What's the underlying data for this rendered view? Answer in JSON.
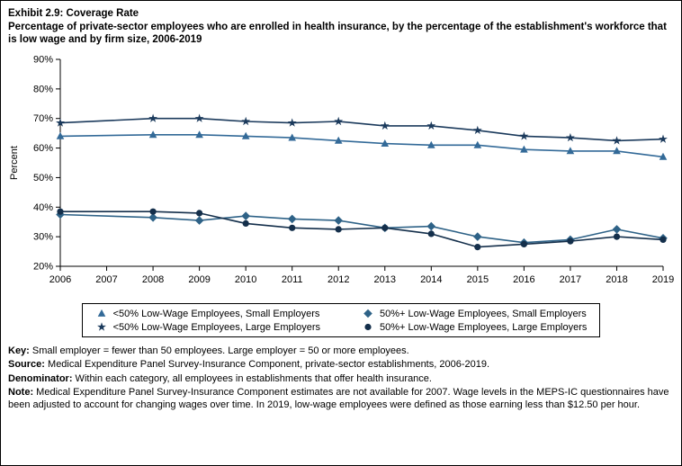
{
  "title": {
    "line1": "Exhibit 2.9: Coverage Rate",
    "line2": "Percentage of private-sector employees who are enrolled in health insurance, by the percentage of the establishment's workforce that is low wage and by firm size, 2006-2019"
  },
  "chart_data": {
    "type": "line",
    "title": "Coverage Rate",
    "xlabel": "",
    "ylabel": "Percent",
    "ylim": [
      20,
      90
    ],
    "ytick_step": 10,
    "ytick_suffix": "%",
    "grid": false,
    "legend_position": "bottom",
    "missing_note": "Estimates not available for 2007",
    "x": [
      2006,
      2007,
      2008,
      2009,
      2010,
      2011,
      2012,
      2013,
      2014,
      2015,
      2016,
      2017,
      2018,
      2019
    ],
    "series": [
      {
        "name": "<50% Low-Wage Employees, Small Employers",
        "marker": "triangle",
        "color": "#336a98",
        "values": [
          64,
          null,
          64.5,
          64.5,
          64,
          63.5,
          62.5,
          61.5,
          61,
          61,
          59.5,
          59,
          59,
          57
        ]
      },
      {
        "name": "<50% Low-Wage Employees, Large Employers",
        "marker": "star",
        "color": "#1b3a5c",
        "values": [
          68.5,
          null,
          70,
          70,
          69,
          68.5,
          69,
          67.5,
          67.5,
          66,
          64,
          63.5,
          62.5,
          63
        ]
      },
      {
        "name": "50%+ Low-Wage Employees, Small Employers",
        "marker": "diamond",
        "color": "#2e6287",
        "values": [
          37.5,
          null,
          36.5,
          35.5,
          37,
          36,
          35.5,
          33,
          33.5,
          30,
          28,
          29,
          32.5,
          29.5
        ]
      },
      {
        "name": "50%+ Low-Wage Employees, Large Employers",
        "marker": "circle",
        "color": "#142f4b",
        "values": [
          38.5,
          null,
          38.5,
          38,
          34.5,
          33,
          32.5,
          33,
          31,
          26.5,
          27.5,
          28.5,
          30,
          29
        ]
      }
    ]
  },
  "footer": [
    {
      "label": "Key:",
      "text": " Small employer = fewer than 50 employees. Large employer = 50 or more employees."
    },
    {
      "label": "Source:",
      "text": " Medical Expenditure Panel Survey-Insurance Component, private-sector establishments, 2006-2019."
    },
    {
      "label": "Denominator:",
      "text": " Within each category, all employees in establishments that offer health insurance."
    },
    {
      "label": "Note:",
      "text": " Medical Expenditure Panel Survey-Insurance Component estimates are not available for 2007. Wage levels in the MEPS-IC questionnaires have been adjusted to account for changing wages over time. In 2019, low-wage employees were defined as those earning less than $12.50 per hour."
    }
  ]
}
